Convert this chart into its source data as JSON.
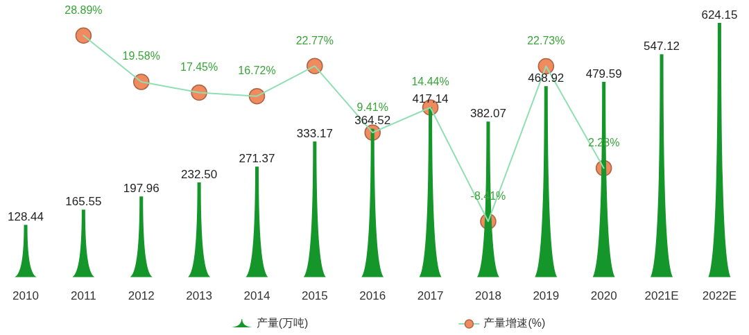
{
  "chart_data": {
    "type": "bar",
    "categories": [
      "2010",
      "2011",
      "2012",
      "2013",
      "2014",
      "2015",
      "2016",
      "2017",
      "2018",
      "2019",
      "2020",
      "2021E",
      "2022E"
    ],
    "series": [
      {
        "name": "产量(万吨)",
        "color": "#14962a",
        "values": [
          128.44,
          165.55,
          197.96,
          232.5,
          271.37,
          333.17,
          364.52,
          417.14,
          382.07,
          468.92,
          479.59,
          547.12,
          624.15
        ],
        "value_labels": [
          "128.44",
          "165.55",
          "197.96",
          "232.50",
          "271.37",
          "333.17",
          "364.52",
          "417.14",
          "382.07",
          "468.92",
          "479.59",
          "547.12",
          "624.15"
        ]
      },
      {
        "name": "产量增速(%)",
        "type": "line",
        "axis": "y2",
        "color": "#8fdfb2",
        "colors": [
          null,
          "#ef8b5e",
          "#ef8b5e",
          "#ef8b5e",
          "#ef8b5e",
          "#ef8b5e",
          "#ef8b5e",
          "#ef8b5e",
          "#ef8b5e",
          "#ef8b5e",
          "#ef8b5e",
          null,
          null
        ],
        "values": [
          null,
          28.89,
          19.58,
          17.45,
          16.72,
          22.77,
          9.41,
          14.44,
          -8.41,
          22.73,
          2.28,
          null,
          null
        ],
        "value_labels": [
          null,
          "28.89%",
          "19.58%",
          "17.45%",
          "16.72%",
          "22.77%",
          "9.41%",
          "14.44%",
          "-8.41%",
          "22.73%",
          "2.28%",
          null,
          null
        ]
      }
    ],
    "legend": "bottom",
    "marker": "circle",
    "tick_labels": "x"
  }
}
